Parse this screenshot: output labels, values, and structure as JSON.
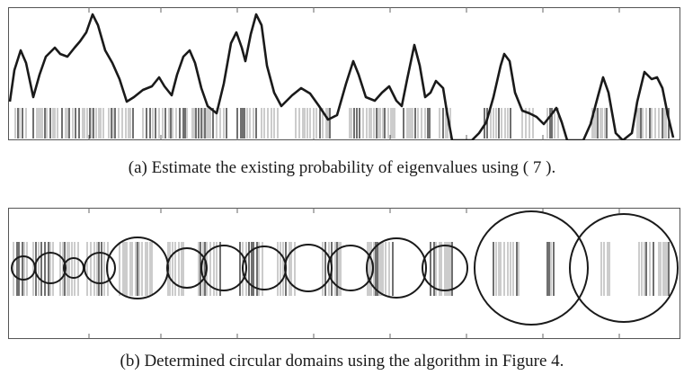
{
  "figure": {
    "panel_a": {
      "caption": "(a) Estimate the existing probability of eigenvalues using ( 7 )."
    },
    "panel_b": {
      "caption": "(b) Determined circular domains using the algorithm in Figure 4."
    }
  },
  "style": {
    "line_color": "#1a1a1a",
    "tick_dark": "#333333",
    "tick_light": "#9a9a9a"
  }
}
